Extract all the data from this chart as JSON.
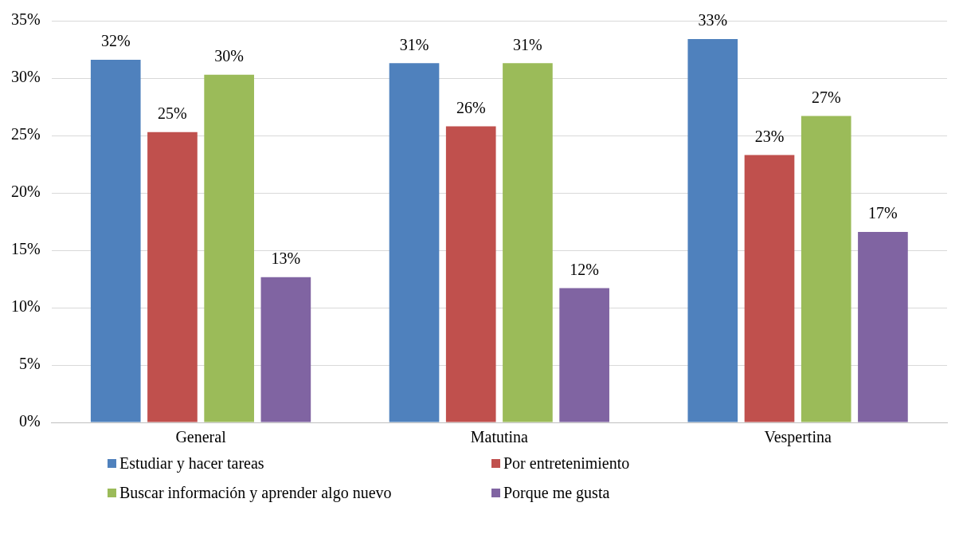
{
  "chart_data": {
    "type": "bar",
    "categories": [
      "General",
      "Matutina",
      "Vespertina"
    ],
    "series": [
      {
        "name": "Estudiar y hacer tareas",
        "color": "#4f81bd",
        "values": [
          31.6,
          31.3,
          33.4
        ],
        "value_labels": [
          "32%",
          "31%",
          "33%"
        ]
      },
      {
        "name": "Por entretenimiento",
        "color": "#c0504d",
        "values": [
          25.3,
          25.8,
          23.3
        ],
        "value_labels": [
          "25%",
          "26%",
          "23%"
        ]
      },
      {
        "name": "Buscar información y aprender algo nuevo",
        "color": "#9bbb59",
        "values": [
          30.3,
          31.3,
          26.7
        ],
        "value_labels": [
          "30%",
          "31%",
          "27%"
        ]
      },
      {
        "name": "Porque me gusta",
        "color": "#8064a2",
        "values": [
          12.65,
          11.7,
          16.6
        ],
        "value_labels": [
          "13%",
          "12%",
          "17%"
        ]
      }
    ],
    "ylim": [
      0,
      35
    ],
    "yticks": [
      {
        "value": 0,
        "label": "0%"
      },
      {
        "value": 5,
        "label": "5%"
      },
      {
        "value": 10,
        "label": "10%"
      },
      {
        "value": 15,
        "label": "15%"
      },
      {
        "value": 20,
        "label": "20%"
      },
      {
        "value": 25,
        "label": "25%"
      },
      {
        "value": 30,
        "label": "30%"
      },
      {
        "value": 35,
        "label": "35%"
      }
    ],
    "grid": "y",
    "legend": "bottom"
  }
}
